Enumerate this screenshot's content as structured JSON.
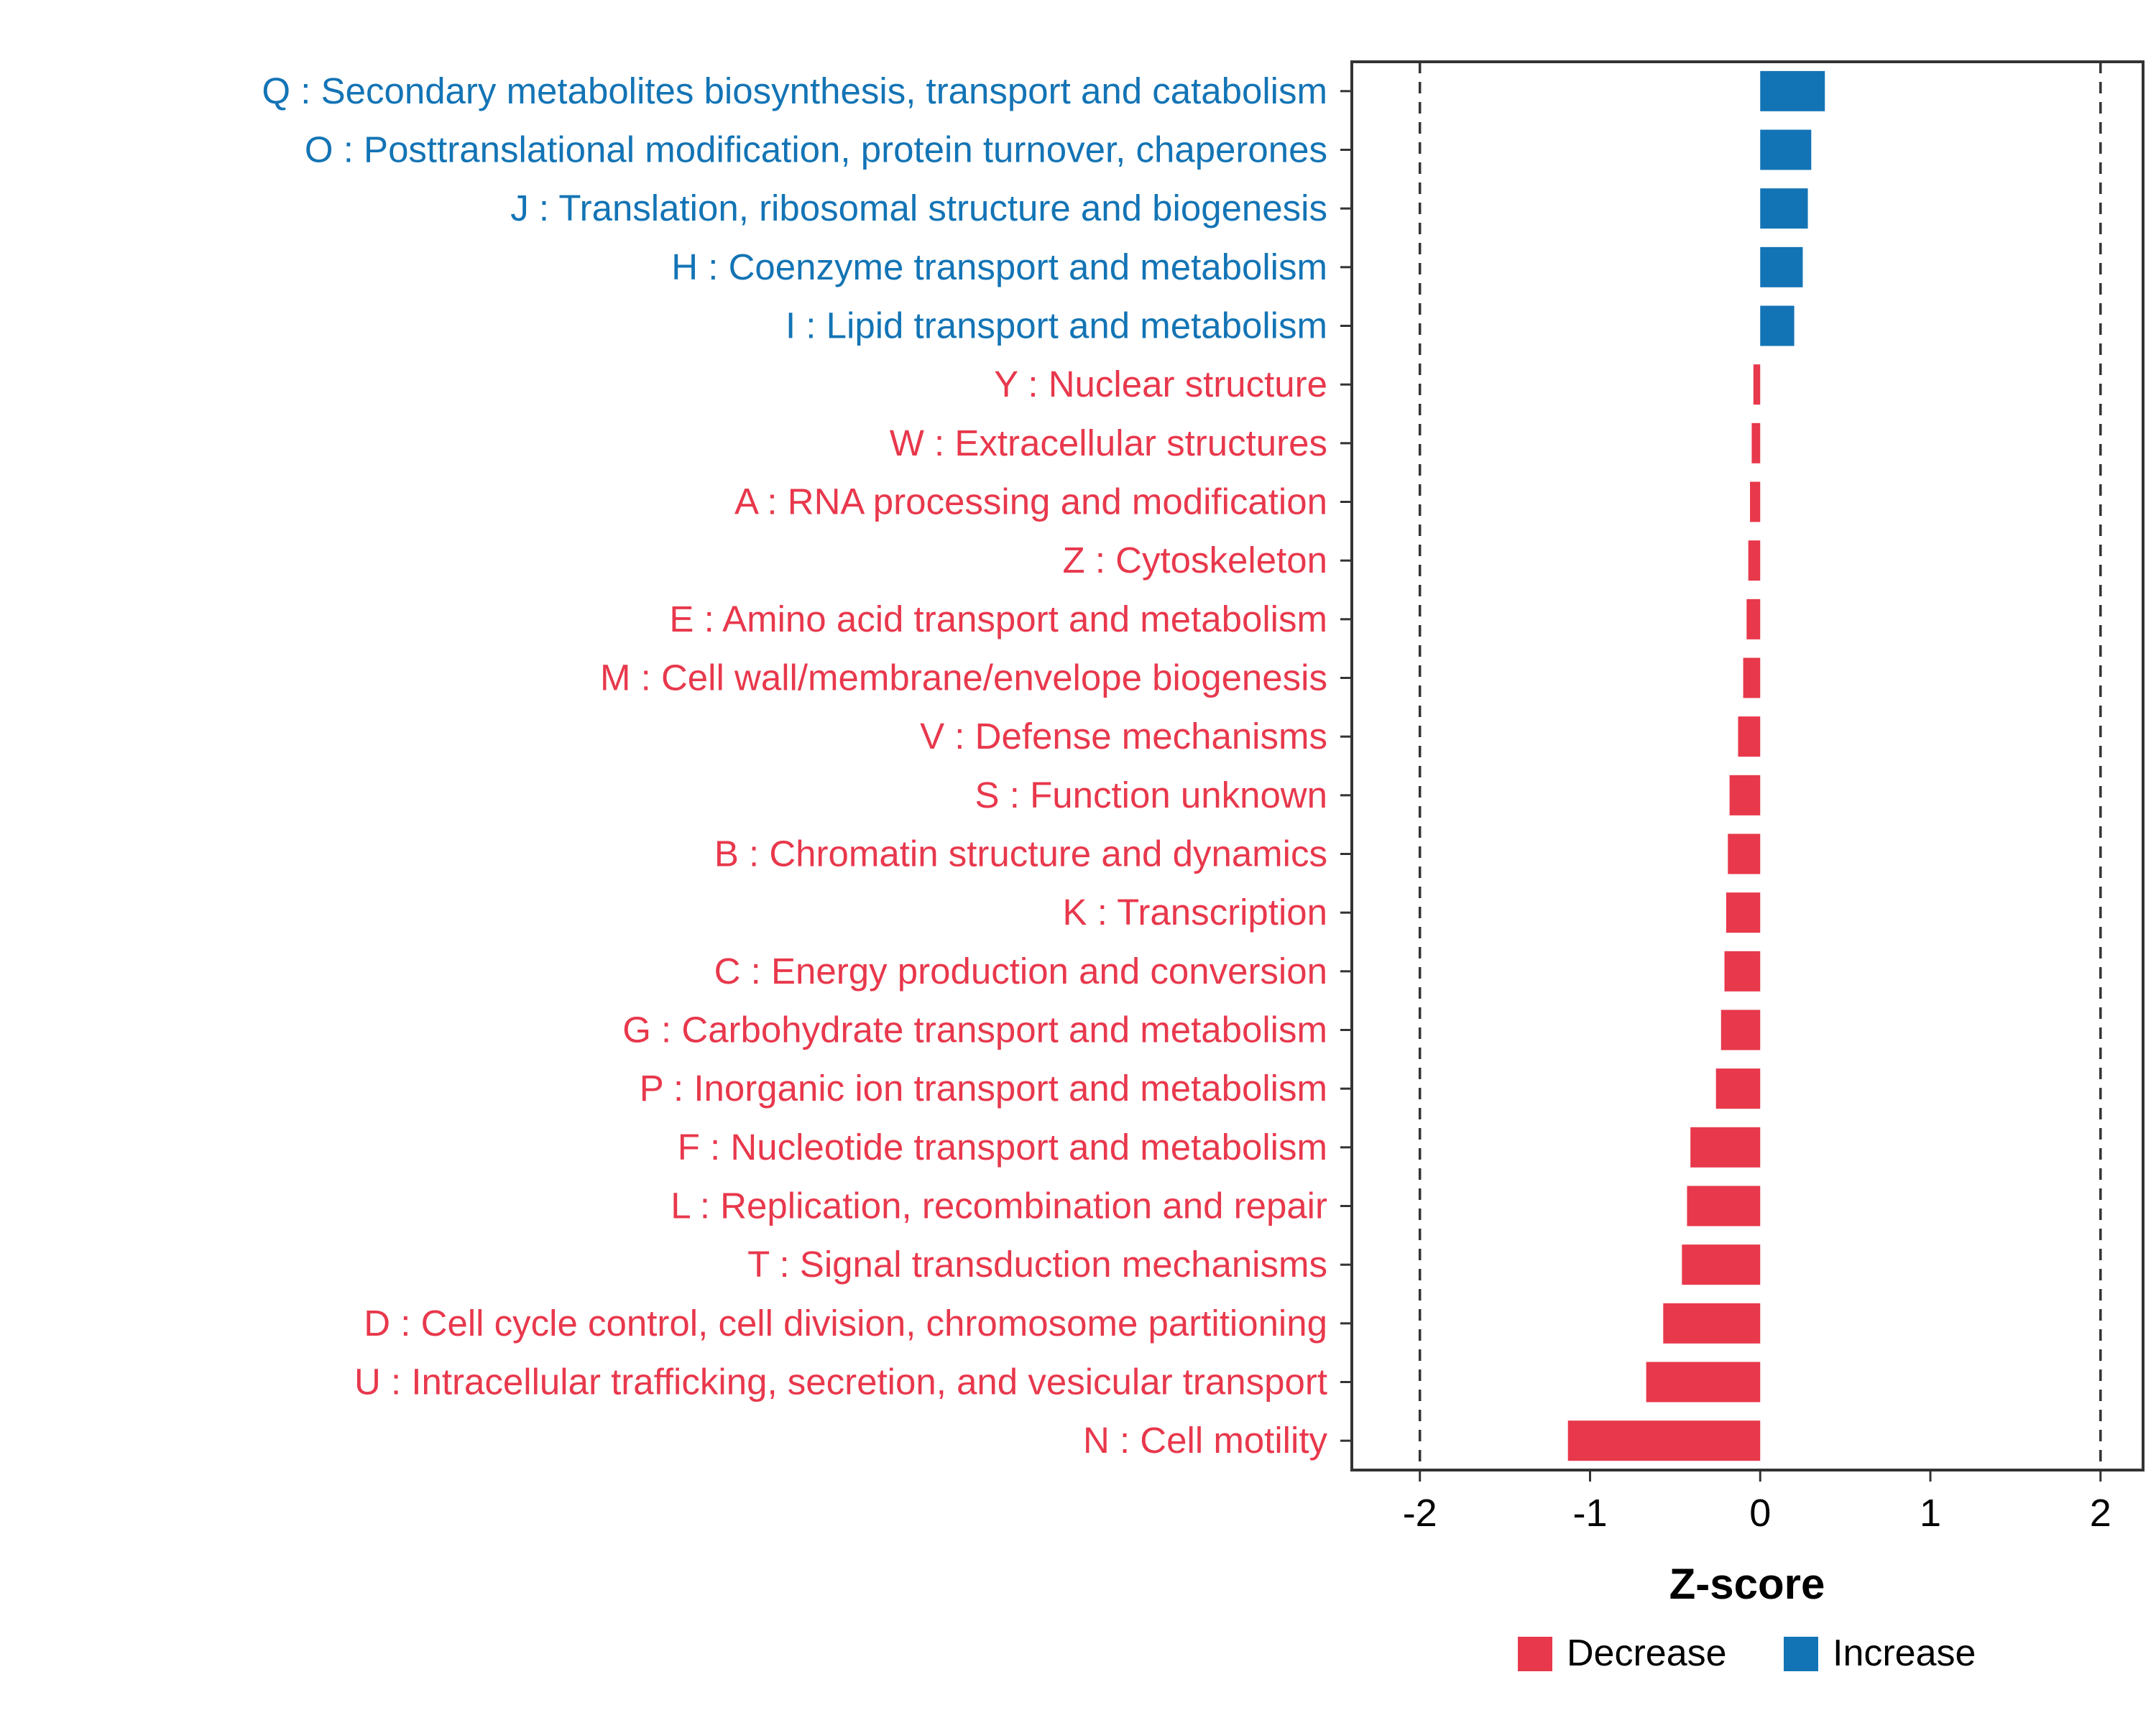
{
  "chart_data": {
    "type": "bar",
    "orientation": "horizontal",
    "title": "",
    "xlabel": "Z-score",
    "ylabel": "",
    "xlim": [
      -2.4,
      2.25
    ],
    "xticks": [
      "-2",
      "-1",
      "0",
      "1",
      "2"
    ],
    "xtick_values": [
      -2,
      -1,
      0,
      1,
      2
    ],
    "reference_lines": [
      -2,
      2
    ],
    "grid": false,
    "legend_position": "bottom-right",
    "colors": {
      "increase": "#1374B5",
      "decrease": "#E8384C",
      "axis": "#333333",
      "tick_text": "#000000"
    },
    "legend": [
      {
        "label": "Decrease",
        "color": "#E8384C"
      },
      {
        "label": "Increase",
        "color": "#1374B5"
      }
    ],
    "categories": [
      {
        "label": "Q : Secondary metabolites biosynthesis, transport and catabolism",
        "value": 0.38,
        "direction": "increase"
      },
      {
        "label": "O : Posttranslational modification, protein turnover, chaperones",
        "value": 0.3,
        "direction": "increase"
      },
      {
        "label": "J : Translation, ribosomal structure and biogenesis",
        "value": 0.28,
        "direction": "increase"
      },
      {
        "label": "H : Coenzyme transport and metabolism",
        "value": 0.25,
        "direction": "increase"
      },
      {
        "label": "I : Lipid transport and metabolism",
        "value": 0.2,
        "direction": "increase"
      },
      {
        "label": "Y : Nuclear structure",
        "value": -0.04,
        "direction": "decrease"
      },
      {
        "label": "W : Extracellular structures",
        "value": -0.05,
        "direction": "decrease"
      },
      {
        "label": "A : RNA processing and modification",
        "value": -0.06,
        "direction": "decrease"
      },
      {
        "label": "Z : Cytoskeleton",
        "value": -0.07,
        "direction": "decrease"
      },
      {
        "label": "E : Amino acid transport and metabolism",
        "value": -0.08,
        "direction": "decrease"
      },
      {
        "label": "M : Cell wall/membrane/envelope biogenesis",
        "value": -0.1,
        "direction": "decrease"
      },
      {
        "label": "V : Defense mechanisms",
        "value": -0.13,
        "direction": "decrease"
      },
      {
        "label": "S : Function unknown",
        "value": -0.18,
        "direction": "decrease"
      },
      {
        "label": "B : Chromatin structure and dynamics",
        "value": -0.19,
        "direction": "decrease"
      },
      {
        "label": "K : Transcription",
        "value": -0.2,
        "direction": "decrease"
      },
      {
        "label": "C : Energy production and conversion",
        "value": -0.21,
        "direction": "decrease"
      },
      {
        "label": "G : Carbohydrate transport and metabolism",
        "value": -0.23,
        "direction": "decrease"
      },
      {
        "label": "P : Inorganic ion transport and metabolism",
        "value": -0.26,
        "direction": "decrease"
      },
      {
        "label": "F : Nucleotide transport and metabolism",
        "value": -0.41,
        "direction": "decrease"
      },
      {
        "label": "L : Replication, recombination and repair",
        "value": -0.43,
        "direction": "decrease"
      },
      {
        "label": "T : Signal transduction mechanisms",
        "value": -0.46,
        "direction": "decrease"
      },
      {
        "label": "D : Cell cycle control, cell division, chromosome partitioning",
        "value": -0.57,
        "direction": "decrease"
      },
      {
        "label": "U : Intracellular trafficking, secretion, and vesicular transport",
        "value": -0.67,
        "direction": "decrease"
      },
      {
        "label": "N : Cell motility",
        "value": -1.13,
        "direction": "decrease"
      }
    ]
  }
}
